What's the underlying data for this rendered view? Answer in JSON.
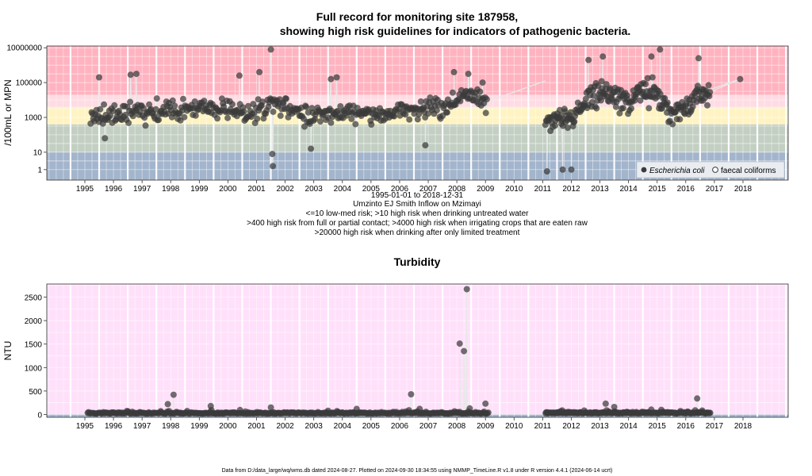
{
  "chart_data": [
    {
      "type": "scatter",
      "title_line1": "Full record for monitoring site 187958,",
      "title_line2": "showing high risk guidelines for indicators of pathogenic bacteria.",
      "ylabel": "/100mL or MPN",
      "y_scale": "log",
      "y_ticks": [
        "10000000",
        "100000",
        "1000",
        "10",
        "1"
      ],
      "x_ticks": [
        "1995",
        "1996",
        "1997",
        "1998",
        "1999",
        "2000",
        "2001",
        "2002",
        "2003",
        "2004",
        "2005",
        "2006",
        "2007",
        "2008",
        "2009",
        "2010",
        "2011",
        "2012",
        "2013",
        "2014",
        "2015",
        "2016",
        "2017",
        "2018"
      ],
      "xlim": [
        "1994-03-01",
        "2020-02-01"
      ],
      "ylim_log10": [
        -0.6,
        7.1
      ],
      "risk_bands": [
        {
          "from": 0,
          "to": 10,
          "color": "#a3b5cc",
          "meaning": "low-med risk"
        },
        {
          "from": 10,
          "to": 400,
          "color": "#c3cfc3",
          "meaning": "high risk drinking untreated"
        },
        {
          "from": 400,
          "to": 4000,
          "color": "#fff3c2",
          "meaning": "high risk contact"
        },
        {
          "from": 4000,
          "to": 20000,
          "color": "#ffdbe3",
          "meaning": "high risk irrigation"
        },
        {
          "from": 20000,
          "to": 10000000000,
          "color": "#ffb3c0",
          "meaning": "high risk limited treatment"
        }
      ],
      "legend": [
        {
          "label": "Escherichia coli",
          "marker": "filled-circle",
          "italic": true
        },
        {
          "label": "faecal coliforms",
          "marker": "open-circle",
          "italic": false
        }
      ],
      "series": [
        {
          "name": "Escherichia coli",
          "segments": [
            {
              "from": 1995.7,
              "to": 2009.55,
              "n": 420,
              "baseline_log10": 3.45,
              "spread": 0.55,
              "anchors": [
                [
                  1995.7,
                  2.9
                ],
                [
                  1996.5,
                  3.2
                ],
                [
                  1998.0,
                  3.4
                ],
                [
                  2000.0,
                  3.55
                ],
                [
                  2001.5,
                  3.3
                ],
                [
                  2002.0,
                  3.9
                ],
                [
                  2003.0,
                  3.3
                ],
                [
                  2004.0,
                  3.2
                ],
                [
                  2005.0,
                  3.4
                ],
                [
                  2006.0,
                  3.1
                ],
                [
                  2007.0,
                  3.6
                ],
                [
                  2008.0,
                  3.5
                ],
                [
                  2008.8,
                  4.3
                ],
                [
                  2009.55,
                  3.8
                ]
              ],
              "extremes": [
                [
                  1996.0,
                  5.3
                ],
                [
                  1996.2,
                  1.8
                ],
                [
                  1997.1,
                  5.45
                ],
                [
                  1997.3,
                  5.5
                ],
                [
                  2000.9,
                  5.4
                ],
                [
                  2001.6,
                  5.6
                ],
                [
                  2002.0,
                  6.9
                ],
                [
                  2002.05,
                  0.9
                ],
                [
                  2002.07,
                  0.2
                ],
                [
                  2003.4,
                  1.2
                ],
                [
                  2004.1,
                  5.2
                ],
                [
                  2004.3,
                  5.3
                ],
                [
                  2007.4,
                  1.4
                ],
                [
                  2008.4,
                  5.6
                ],
                [
                  2008.9,
                  5.5
                ],
                [
                  2009.4,
                  5.0
                ]
              ]
            },
            {
              "from": 2011.6,
              "to": 2017.35,
              "n": 230,
              "baseline_log10": 3.75,
              "spread": 0.65,
              "anchors": [
                [
                  2011.6,
                  2.6
                ],
                [
                  2012.0,
                  3.2
                ],
                [
                  2012.6,
                  3.0
                ],
                [
                  2013.0,
                  4.0
                ],
                [
                  2013.5,
                  4.6
                ],
                [
                  2014.0,
                  4.2
                ],
                [
                  2014.5,
                  3.8
                ],
                [
                  2015.0,
                  4.5
                ],
                [
                  2015.5,
                  4.4
                ],
                [
                  2016.0,
                  3.3
                ],
                [
                  2016.5,
                  3.6
                ],
                [
                  2017.0,
                  4.3
                ],
                [
                  2017.35,
                  4.4
                ]
              ],
              "extremes": [
                [
                  2011.65,
                  -0.1
                ],
                [
                  2012.2,
                  0.0
                ],
                [
                  2012.5,
                  0.0
                ],
                [
                  2013.1,
                  6.3
                ],
                [
                  2013.6,
                  6.5
                ],
                [
                  2015.3,
                  6.5
                ],
                [
                  2015.6,
                  6.9
                ],
                [
                  2016.95,
                  6.4
                ],
                [
                  2018.4,
                  5.2
                ]
              ]
            }
          ]
        },
        {
          "name": "faecal coliforms",
          "segments": [
            {
              "from": 2009.55,
              "to": 2011.6,
              "trend_log10": [
                3.9,
                5.1
              ]
            },
            {
              "from": 2017.35,
              "to": 2018.4,
              "trend_log10": [
                4.6,
                5.2
              ]
            }
          ]
        }
      ],
      "date_range": "1995-01-01 to 2018-12-31",
      "site_name": "Umzinto EJ Smith Inflow on Mzimayi",
      "notes": [
        "<=10 low-med risk; >10 high risk when drinking untreated water",
        ">400 high risk from full or partial contact; >4000 high risk when irrigating crops that are eaten raw",
        ">20000 high risk when drinking after only limited treatment"
      ]
    },
    {
      "type": "scatter",
      "title": "Turbidity",
      "ylabel": "NTU",
      "y_ticks": [
        "2500",
        "2000",
        "1500",
        "1000",
        "500",
        "0"
      ],
      "ylim": [
        -60,
        2780
      ],
      "x_ticks": [
        "1995",
        "1996",
        "1997",
        "1998",
        "1999",
        "2000",
        "2001",
        "2002",
        "2003",
        "2004",
        "2005",
        "2006",
        "2007",
        "2008",
        "2009",
        "2010",
        "2011",
        "2012",
        "2013",
        "2014",
        "2015",
        "2016",
        "2017",
        "2018"
      ],
      "bands": [
        {
          "from": -60,
          "to": 0,
          "color": "#a3b5cc"
        },
        {
          "from": 0,
          "to": 2780,
          "color": "#ffe0fa"
        }
      ],
      "series": [
        {
          "name": "Turbidity",
          "segments": [
            {
              "from": 1995.6,
              "to": 2009.6,
              "n": 380,
              "baseline": 20,
              "spread": 25
            },
            {
              "from": 2011.6,
              "to": 2017.35,
              "n": 230,
              "baseline": 25,
              "spread": 25
            }
          ],
          "extremes": [
            [
              1998.6,
              420
            ],
            [
              1998.4,
              220
            ],
            [
              1999.9,
              180
            ],
            [
              2002.0,
              150
            ],
            [
              2004.0,
              80
            ],
            [
              2005.0,
              120
            ],
            [
              2006.9,
              430
            ],
            [
              2007.2,
              120
            ],
            [
              2008.6,
              1510
            ],
            [
              2008.75,
              1350
            ],
            [
              2008.85,
              2670
            ],
            [
              2008.95,
              130
            ],
            [
              2009.5,
              230
            ],
            [
              2013.7,
              230
            ],
            [
              2014.0,
              160
            ],
            [
              2016.9,
              340
            ]
          ]
        }
      ]
    }
  ],
  "footer": "Data from D:/data_large/wq/wms.db dated 2024-08-27. Plotted on 2024-09-30 18:34:55 using NMMP_TimeLine.R v1.8 under R version 4.4.1 (2024-06-14 ucrt)",
  "colors": {
    "point_fill": "#3a3a3a",
    "connector": "#e8e8e8",
    "grid": "#ffffff"
  }
}
